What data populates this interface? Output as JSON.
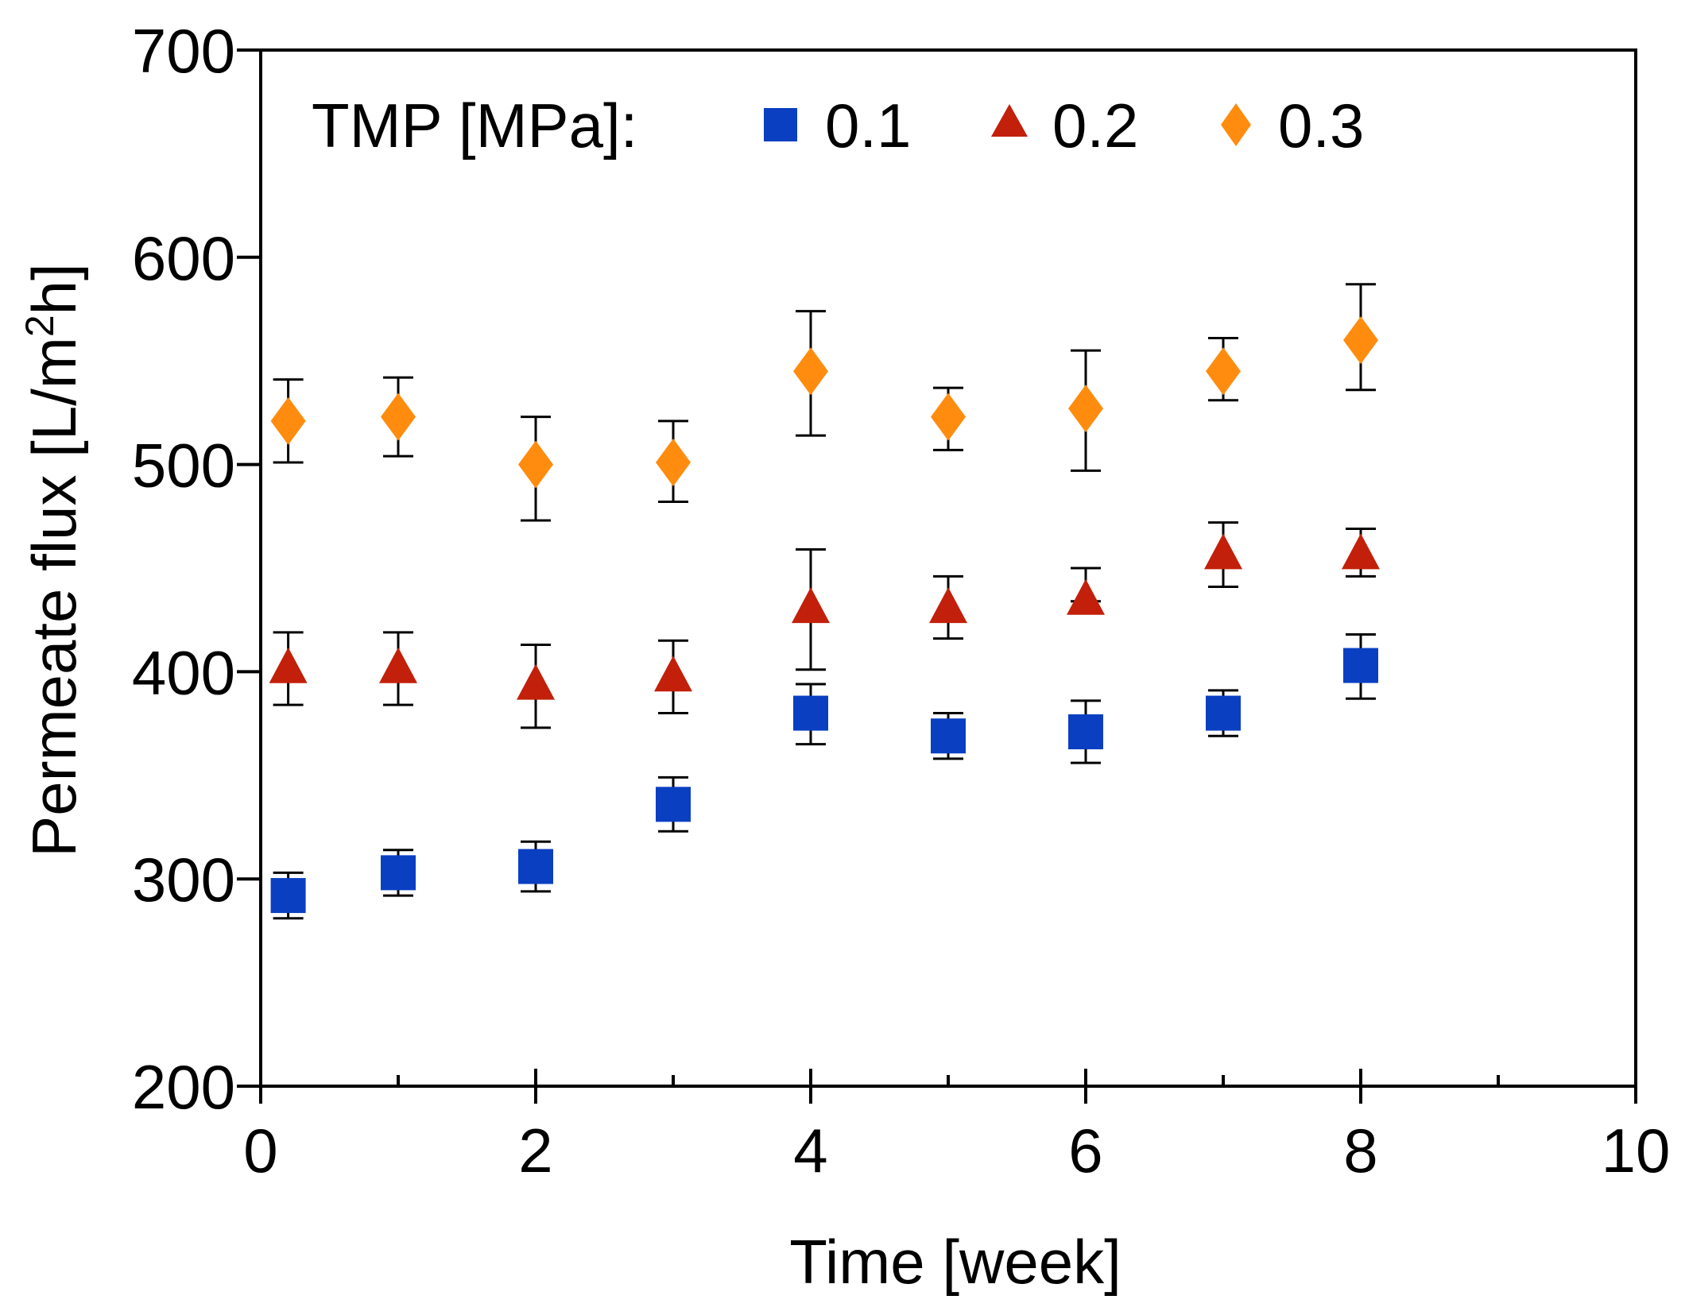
{
  "chart_data": {
    "type": "scatter",
    "title": "",
    "xlabel": "Time [week]",
    "ylabel_main": "Permeate flux [L/m",
    "ylabel_sup": "2",
    "ylabel_end": "h]",
    "xlim": [
      0,
      10
    ],
    "ylim": [
      200,
      700
    ],
    "xticks": [
      0,
      2,
      4,
      6,
      8,
      10
    ],
    "xtick_labels": [
      "0",
      "2",
      "4",
      "6",
      "8",
      "10"
    ],
    "xminor_ticks": [
      1,
      3,
      5,
      7,
      9
    ],
    "yticks": [
      200,
      300,
      400,
      500,
      600,
      700
    ],
    "ytick_labels": [
      "200",
      "300",
      "400",
      "500",
      "600",
      "700"
    ],
    "grid": false,
    "legend": {
      "title": "TMP [MPa]:",
      "placement": "top-left"
    },
    "series": [
      {
        "name": "0.1",
        "marker": "square",
        "color": "#0a3fc2",
        "x": [
          0.2,
          1,
          2,
          3,
          4,
          5,
          6,
          7,
          8
        ],
        "y": [
          292,
          303,
          306,
          336,
          380,
          369,
          371,
          380,
          403
        ],
        "err_low": [
          281,
          292,
          294,
          323,
          365,
          358,
          356,
          369,
          387
        ],
        "err_high": [
          303,
          314,
          318,
          349,
          394,
          380,
          386,
          391,
          418
        ]
      },
      {
        "name": "0.2",
        "marker": "triangle",
        "color": "#c2200a",
        "x": [
          0.2,
          1,
          2,
          3,
          4,
          5,
          6,
          7,
          8
        ],
        "y": [
          401,
          401,
          393,
          397,
          430,
          430,
          434,
          456,
          456
        ],
        "err_low": [
          384,
          384,
          373,
          380,
          401,
          416,
          434,
          441,
          446
        ],
        "err_high": [
          419,
          419,
          413,
          415,
          459,
          446,
          450,
          472,
          469
        ]
      },
      {
        "name": "0.3",
        "marker": "diamond",
        "color": "#ff8c0f",
        "x": [
          0.2,
          1,
          2,
          3,
          4,
          5,
          6,
          7,
          8
        ],
        "y": [
          521,
          523,
          500,
          501,
          545,
          523,
          527,
          545,
          560
        ],
        "err_low": [
          501,
          504,
          473,
          482,
          514,
          507,
          497,
          531,
          536
        ],
        "err_high": [
          541,
          542,
          523,
          521,
          574,
          537,
          555,
          561,
          587
        ]
      }
    ]
  }
}
